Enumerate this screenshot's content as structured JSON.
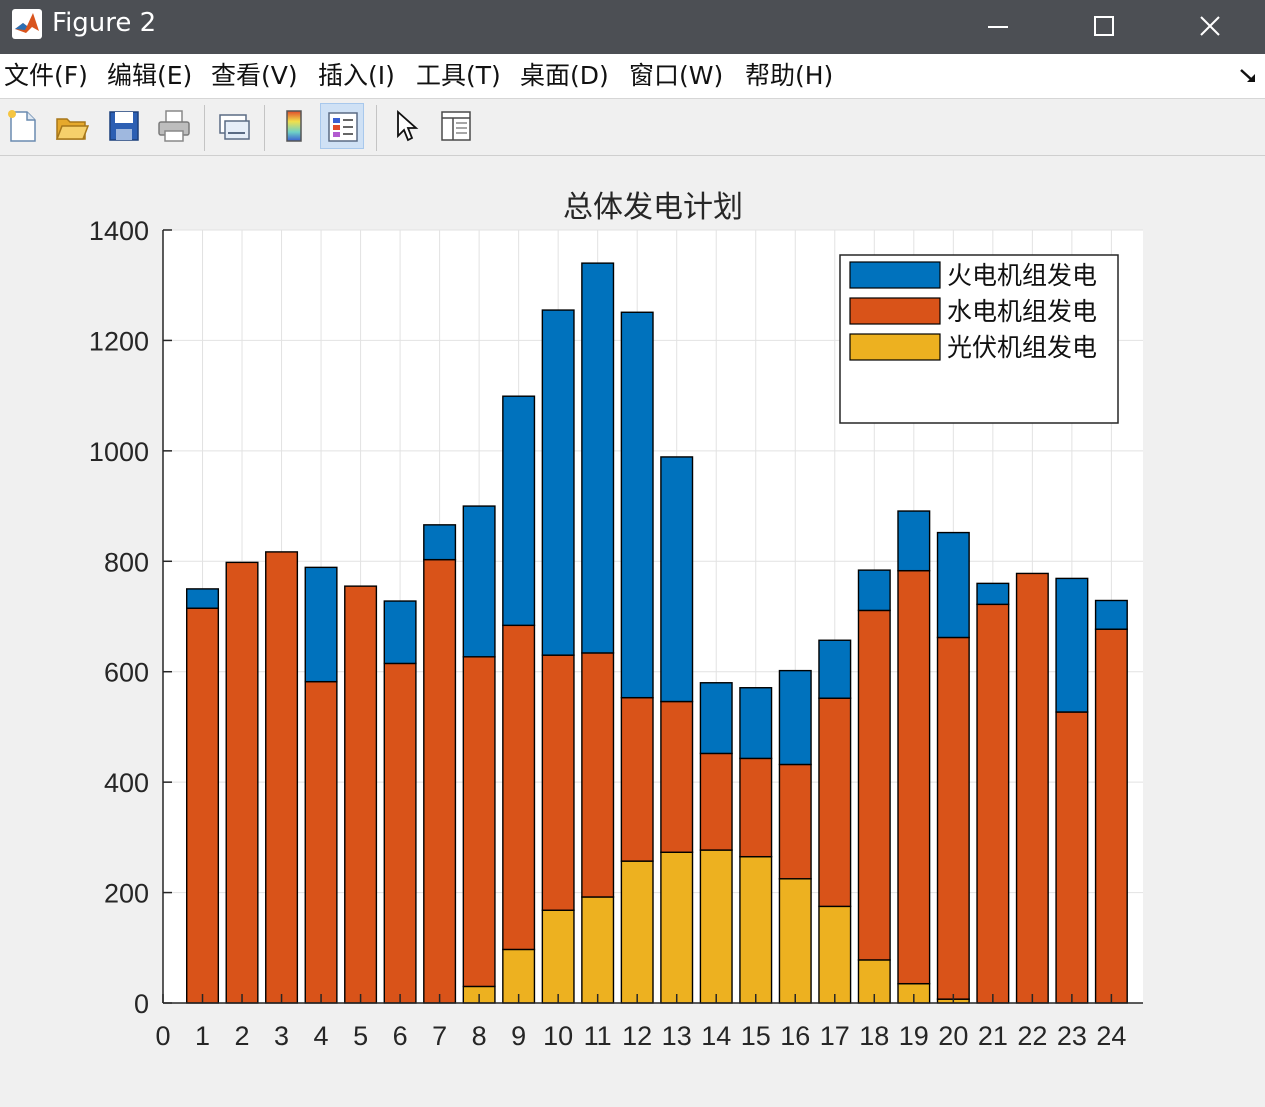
{
  "window": {
    "title": "Figure 2"
  },
  "menu": {
    "items": [
      "文件(F)",
      "编辑(E)",
      "查看(V)",
      "插入(I)",
      "工具(T)",
      "桌面(D)",
      "窗口(W)",
      "帮助(H)"
    ]
  },
  "toolbar": {
    "buttons": [
      {
        "name": "new-figure-icon"
      },
      {
        "name": "open-file-icon"
      },
      {
        "name": "save-icon"
      },
      {
        "name": "print-icon"
      },
      {
        "name": "link-plot-icon"
      },
      {
        "name": "colorbar-icon"
      },
      {
        "name": "legend-icon"
      },
      {
        "name": "edit-plot-cursor-icon"
      },
      {
        "name": "property-inspector-icon"
      }
    ]
  },
  "chart_data": {
    "type": "bar",
    "stacked": true,
    "title": "总体发电计划",
    "xlabel": "",
    "ylabel": "",
    "xlim": [
      0,
      24.8
    ],
    "ylim": [
      0,
      1400
    ],
    "xticks": [
      0,
      1,
      2,
      3,
      4,
      5,
      6,
      7,
      8,
      9,
      10,
      11,
      12,
      13,
      14,
      15,
      16,
      17,
      18,
      19,
      20,
      21,
      22,
      23,
      24
    ],
    "yticks": [
      0,
      200,
      400,
      600,
      800,
      1000,
      1200,
      1400
    ],
    "grid": true,
    "legend_position": "top-right",
    "categories": [
      1,
      2,
      3,
      4,
      5,
      6,
      7,
      8,
      9,
      10,
      11,
      12,
      13,
      14,
      15,
      16,
      17,
      18,
      19,
      20,
      21,
      22,
      23,
      24
    ],
    "series": [
      {
        "name": "光伏机组发电",
        "color": "#EDB120",
        "values": [
          0,
          0,
          0,
          0,
          0,
          0,
          0,
          30,
          97,
          168,
          192,
          257,
          273,
          277,
          265,
          225,
          175,
          78,
          35,
          7,
          0,
          0,
          0,
          0
        ]
      },
      {
        "name": "水电机组发电",
        "color": "#D95319",
        "values": [
          715,
          798,
          817,
          582,
          755,
          615,
          803,
          597,
          587,
          462,
          442,
          296,
          273,
          175,
          178,
          207,
          377,
          633,
          748,
          655,
          722,
          778,
          527,
          677
        ]
      },
      {
        "name": "火电机组发电",
        "color": "#0072BD",
        "values": [
          35,
          0,
          0,
          207,
          0,
          113,
          63,
          273,
          415,
          625,
          706,
          698,
          443,
          128,
          128,
          170,
          105,
          73,
          108,
          190,
          38,
          0,
          242,
          52
        ]
      }
    ],
    "legend_order": [
      "火电机组发电",
      "水电机组发电",
      "光伏机组发电"
    ]
  }
}
